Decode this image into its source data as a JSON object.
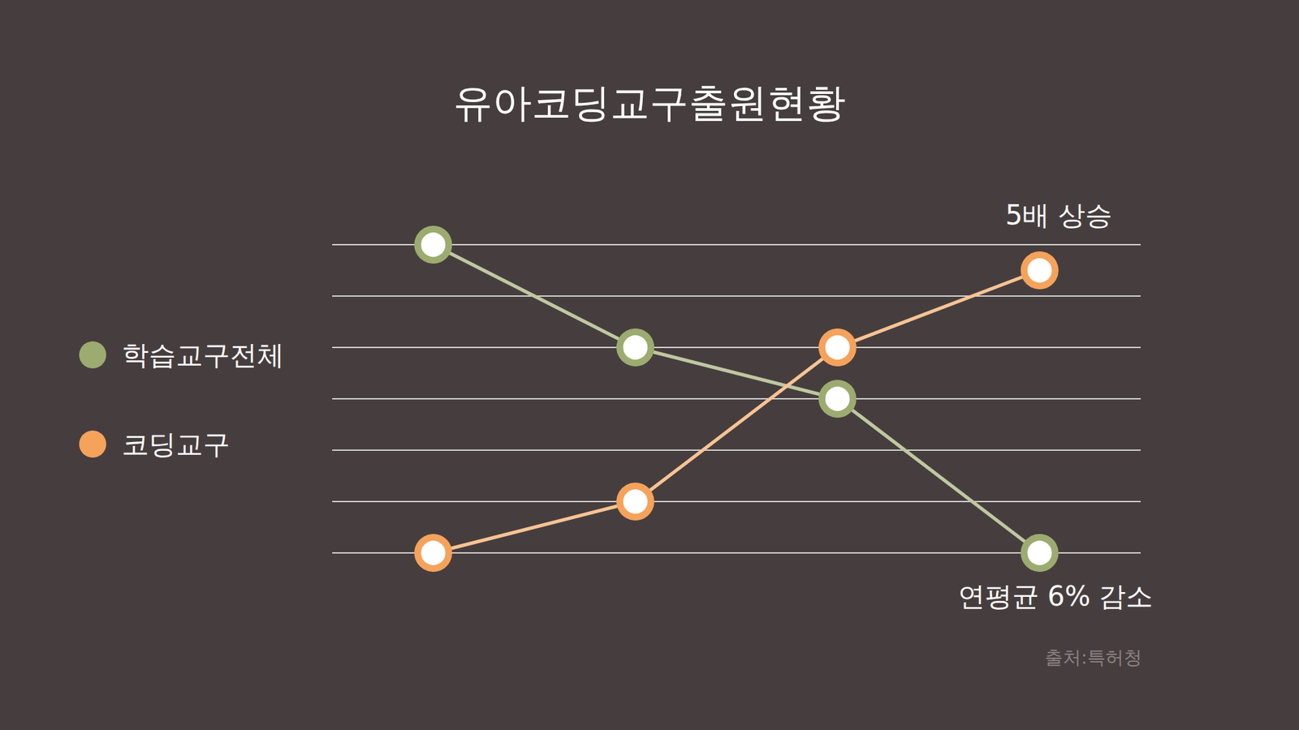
{
  "chart_data": {
    "type": "line",
    "title": "유아코딩교구출원현황",
    "categories": [
      null,
      null,
      null,
      null
    ],
    "series": [
      {
        "name": "학습교구전체",
        "color": "#9cab6f",
        "values": [
          6,
          4,
          3,
          0
        ]
      },
      {
        "name": "코딩교구",
        "color": "#f5a25b",
        "values": [
          0,
          1,
          4,
          5.5
        ]
      }
    ],
    "ylim": [
      0,
      6
    ],
    "yticks": [
      0,
      1,
      2,
      3,
      4,
      5,
      6
    ],
    "grid": true,
    "tick_labels": false,
    "legend": "left",
    "marker": "circle",
    "annotations": [
      "5배 상승",
      "연평균 6% 감소"
    ],
    "source": "출처:특허청"
  }
}
